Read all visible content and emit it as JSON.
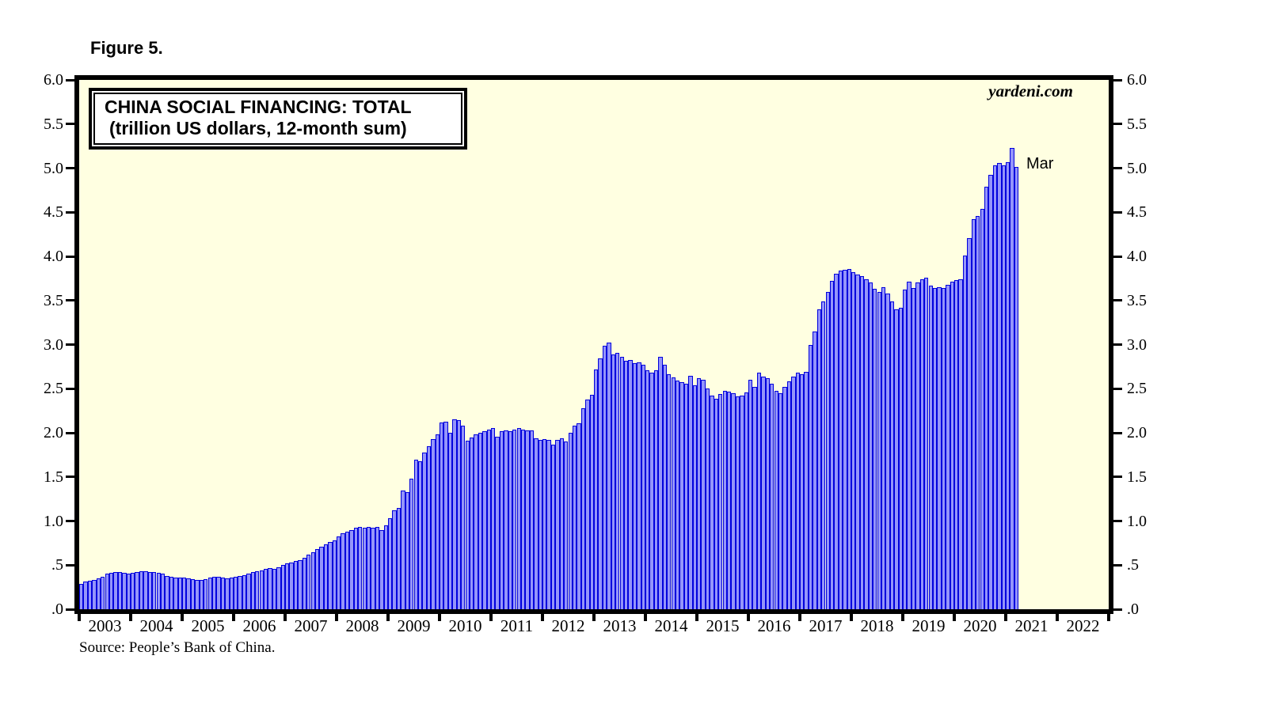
{
  "figure_label": "Figure 5.",
  "title": {
    "line1": "CHINA SOCIAL FINANCING: TOTAL",
    "line2": "(trillion US dollars, 12-month sum)"
  },
  "watermark": "yardeni.com",
  "annotation_last_point": "Mar",
  "source_note": "Source: People’s Bank of China.",
  "colors": {
    "plot_background": "#FFFFE1",
    "bar_fill": "#9595FA",
    "bar_border": "#0000DD",
    "frame": "#000000",
    "page_background": "#FFFFFF"
  },
  "y_axis": {
    "min": 0,
    "max": 6,
    "step": 0.5,
    "tick_labels_top_to_bottom": [
      "6.0",
      "5.5",
      "5.0",
      "4.5",
      "4.0",
      "3.5",
      "3.0",
      "2.5",
      "2.0",
      "1.5",
      "1.0",
      ".5",
      ".0"
    ]
  },
  "x_axis": {
    "year_labels": [
      "2003",
      "2004",
      "2005",
      "2006",
      "2007",
      "2008",
      "2009",
      "2010",
      "2011",
      "2012",
      "2013",
      "2014",
      "2015",
      "2016",
      "2017",
      "2018",
      "2019",
      "2020",
      "2021",
      "2022"
    ]
  },
  "chart_data": {
    "type": "bar",
    "title": "CHINA SOCIAL FINANCING: TOTAL",
    "subtitle": "(trillion US dollars, 12-month sum)",
    "ylabel": "trillion US dollars",
    "ylim": [
      0,
      6
    ],
    "frequency": "monthly",
    "start": "2003-01",
    "end": "2021-03",
    "last_point_label": "Mar",
    "grid": false,
    "years": [
      {
        "year": "2003",
        "values": [
          0.29,
          0.31,
          0.32,
          0.33,
          0.35,
          0.37,
          0.4,
          0.41,
          0.42,
          0.42,
          0.41,
          0.4
        ]
      },
      {
        "year": "2004",
        "values": [
          0.41,
          0.42,
          0.43,
          0.43,
          0.42,
          0.42,
          0.41,
          0.4,
          0.38,
          0.37,
          0.36,
          0.36
        ]
      },
      {
        "year": "2005",
        "values": [
          0.36,
          0.35,
          0.34,
          0.33,
          0.33,
          0.34,
          0.36,
          0.37,
          0.37,
          0.36,
          0.35,
          0.36
        ]
      },
      {
        "year": "2006",
        "values": [
          0.37,
          0.38,
          0.39,
          0.4,
          0.42,
          0.43,
          0.44,
          0.46,
          0.47,
          0.46,
          0.48,
          0.5
        ]
      },
      {
        "year": "2007",
        "values": [
          0.52,
          0.53,
          0.55,
          0.56,
          0.58,
          0.62,
          0.65,
          0.68,
          0.71,
          0.74,
          0.76,
          0.78
        ]
      },
      {
        "year": "2008",
        "values": [
          0.83,
          0.86,
          0.88,
          0.9,
          0.92,
          0.93,
          0.92,
          0.93,
          0.92,
          0.93,
          0.9,
          0.95
        ]
      },
      {
        "year": "2009",
        "values": [
          1.03,
          1.12,
          1.15,
          1.35,
          1.33,
          1.48,
          1.7,
          1.68,
          1.78,
          1.85,
          1.93,
          1.98
        ]
      },
      {
        "year": "2010",
        "values": [
          2.12,
          2.13,
          2.0,
          2.15,
          2.14,
          2.08,
          1.91,
          1.95,
          1.98,
          2.0,
          2.02,
          2.04
        ]
      },
      {
        "year": "2011",
        "values": [
          2.05,
          1.96,
          2.02,
          2.03,
          2.02,
          2.04,
          2.05,
          2.04,
          2.03,
          2.03,
          1.94,
          1.92
        ]
      },
      {
        "year": "2012",
        "values": [
          1.93,
          1.92,
          1.87,
          1.92,
          1.94,
          1.9,
          2.0,
          2.08,
          2.11,
          2.28,
          2.38,
          2.43
        ]
      },
      {
        "year": "2013",
        "values": [
          2.72,
          2.84,
          2.99,
          3.02,
          2.89,
          2.91,
          2.86,
          2.82,
          2.83,
          2.79,
          2.8,
          2.77
        ]
      },
      {
        "year": "2014",
        "values": [
          2.71,
          2.68,
          2.71,
          2.86,
          2.77,
          2.66,
          2.63,
          2.59,
          2.57,
          2.56,
          2.65,
          2.54
        ]
      },
      {
        "year": "2015",
        "values": [
          2.62,
          2.6,
          2.5,
          2.42,
          2.39,
          2.44,
          2.48,
          2.47,
          2.45,
          2.41,
          2.42,
          2.46
        ]
      },
      {
        "year": "2016",
        "values": [
          2.6,
          2.52,
          2.68,
          2.64,
          2.62,
          2.56,
          2.48,
          2.45,
          2.52,
          2.58,
          2.64,
          2.68
        ]
      },
      {
        "year": "2017",
        "values": [
          2.66,
          2.69,
          3.0,
          3.15,
          3.4,
          3.49,
          3.6,
          3.72,
          3.8,
          3.84,
          3.85,
          3.86
        ]
      },
      {
        "year": "2018",
        "values": [
          3.82,
          3.79,
          3.78,
          3.74,
          3.7,
          3.63,
          3.6,
          3.65,
          3.58,
          3.49,
          3.4,
          3.42
        ]
      },
      {
        "year": "2019",
        "values": [
          3.62,
          3.71,
          3.64,
          3.7,
          3.74,
          3.76,
          3.67,
          3.64,
          3.65,
          3.64,
          3.68,
          3.71
        ]
      },
      {
        "year": "2020",
        "values": [
          3.73,
          3.74,
          4.01,
          4.21,
          4.42,
          4.46,
          4.54,
          4.79,
          4.92,
          5.03,
          5.06,
          5.03
        ]
      },
      {
        "year": "2021",
        "values": [
          5.07,
          5.23,
          5.01
        ]
      }
    ]
  }
}
